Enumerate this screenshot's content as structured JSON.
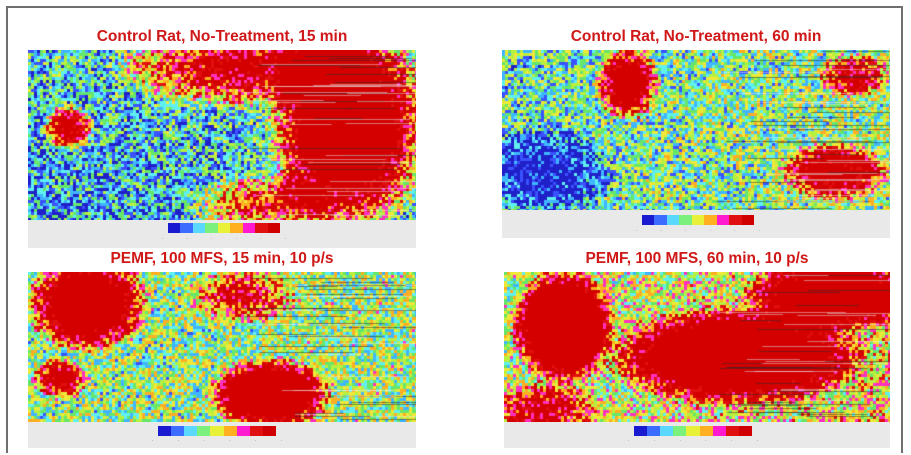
{
  "panels": [
    {
      "title": "Control Rat, No-Treatment, 15 min"
    },
    {
      "title": "Control Rat, No-Treatment, 60 min"
    },
    {
      "title": "PEMF, 100 MFS, 15 min, 10 p/s"
    },
    {
      "title": "PEMF, 100 MFS, 60 min, 10 p/s"
    }
  ],
  "legend": {
    "colors": [
      "#1a1ad0",
      "#3c6cff",
      "#5ad8ff",
      "#7cf07c",
      "#e8f038",
      "#ffb020",
      "#ff1ad0",
      "#e01010",
      "#d00000"
    ]
  }
}
